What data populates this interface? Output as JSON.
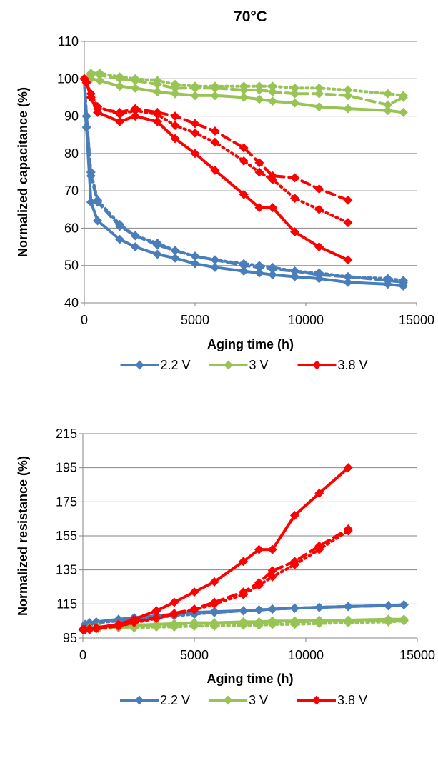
{
  "chart_data": [
    {
      "type": "line",
      "title": "70°C",
      "xlabel": "Aging time (h)",
      "ylabel": "Normalized capacitance (%)",
      "xlim": [
        0,
        15000
      ],
      "ylim": [
        40,
        110
      ],
      "xticks": [
        0,
        5000,
        10000,
        15000
      ],
      "yticks": [
        40,
        50,
        60,
        70,
        80,
        90,
        100,
        110
      ],
      "grid": "horizontal",
      "legend_position": "bottom",
      "legend": [
        "2.2 V",
        "3 V",
        "3.8 V"
      ],
      "series": [
        {
          "name": "2.2 V",
          "color": "#4a7ebb",
          "style": "solid",
          "show_in_legend": true,
          "x": [
            0,
            100,
            300,
            600,
            1600,
            2300,
            3300,
            4100,
            5000,
            5900,
            7200,
            7900,
            8500,
            9500,
            10600,
            11900,
            13700,
            14400
          ],
          "y": [
            100,
            87,
            67,
            62,
            57,
            55,
            53,
            52,
            50.5,
            49.5,
            48.5,
            48,
            47.5,
            47,
            46.5,
            45.5,
            45,
            44.5
          ]
        },
        {
          "name": "2.2 V",
          "color": "#4a7ebb",
          "style": "dash",
          "show_in_legend": false,
          "x": [
            0,
            100,
            300,
            600,
            1600,
            2300,
            3300,
            4100,
            5000,
            5900,
            7200,
            7900,
            8500,
            9500,
            10600,
            11900,
            13700,
            14400
          ],
          "y": [
            100,
            90,
            74,
            67,
            60.5,
            58,
            55.5,
            54,
            52.5,
            51.5,
            50,
            49.5,
            49,
            48.5,
            47.5,
            47,
            46,
            45.5
          ]
        },
        {
          "name": "2.2 V",
          "color": "#4a7ebb",
          "style": "dot",
          "show_in_legend": false,
          "x": [
            0,
            100,
            300,
            600,
            1600,
            2300,
            3300,
            4100,
            5000,
            5900,
            7200,
            7900,
            8500,
            9500,
            10600,
            11900,
            13700,
            14400
          ],
          "y": [
            100,
            90,
            75,
            67.5,
            61,
            58,
            56,
            54,
            52.5,
            51.5,
            50.5,
            50,
            49.5,
            48.5,
            48,
            47,
            46.5,
            46
          ]
        },
        {
          "name": "3 V",
          "color": "#98c455",
          "style": "solid",
          "show_in_legend": true,
          "x": [
            0,
            300,
            700,
            1600,
            2300,
            3300,
            4100,
            5000,
            5900,
            7200,
            7900,
            8500,
            9500,
            10600,
            11900,
            13700,
            14400
          ],
          "y": [
            100,
            100,
            99.5,
            98,
            97.5,
            96.5,
            96,
            95.5,
            95.5,
            95,
            94.5,
            94,
            93.5,
            92.5,
            92,
            91.5,
            91
          ]
        },
        {
          "name": "3 V",
          "color": "#98c455",
          "style": "dash",
          "show_in_legend": false,
          "x": [
            0,
            300,
            700,
            1600,
            2300,
            3300,
            4100,
            5000,
            5900,
            7200,
            7900,
            8500,
            9500,
            10600,
            11900,
            13700,
            14400
          ],
          "y": [
            100,
            101,
            101,
            100,
            99.5,
            98.5,
            97.5,
            97.5,
            97.5,
            97,
            97,
            96.5,
            96,
            96,
            95.5,
            93,
            95
          ]
        },
        {
          "name": "3 V",
          "color": "#98c455",
          "style": "dot",
          "show_in_legend": false,
          "x": [
            0,
            300,
            700,
            1600,
            2300,
            3300,
            4100,
            5000,
            5900,
            7200,
            7900,
            8500,
            9500,
            10600,
            11900,
            13700,
            14400
          ],
          "y": [
            100,
            101.5,
            101.5,
            100.5,
            100,
            99.5,
            98.5,
            98,
            98,
            98,
            98,
            98,
            97.5,
            97.5,
            97,
            96,
            95.5
          ]
        },
        {
          "name": "3.8 V",
          "color": "#ff0000",
          "style": "solid",
          "show_in_legend": true,
          "x": [
            0,
            100,
            300,
            600,
            1600,
            2300,
            3300,
            4100,
            5000,
            5900,
            7200,
            7900,
            8500,
            9500,
            10600,
            11900
          ],
          "y": [
            100,
            99,
            95,
            91,
            88.5,
            90,
            88.5,
            84,
            80,
            75.5,
            69,
            65.5,
            65.5,
            59,
            55,
            51.5
          ]
        },
        {
          "name": "3.8 V",
          "color": "#ff0000",
          "style": "dash",
          "show_in_legend": false,
          "x": [
            0,
            100,
            300,
            600,
            1600,
            2300,
            3300,
            4100,
            5000,
            5900,
            7200,
            7900,
            8500,
            9500,
            10600,
            11900
          ],
          "y": [
            100,
            99,
            95,
            92,
            91,
            92,
            91,
            90,
            88,
            86,
            81.5,
            77.5,
            74,
            73.5,
            70.5,
            67.5
          ]
        },
        {
          "name": "3.8 V",
          "color": "#ff0000",
          "style": "dot",
          "show_in_legend": false,
          "x": [
            0,
            100,
            300,
            600,
            1600,
            2300,
            3300,
            4100,
            5000,
            5900,
            7200,
            7900,
            8500,
            9500,
            10600,
            11900
          ],
          "y": [
            100,
            99,
            96,
            92.5,
            90.5,
            91.5,
            90.5,
            87.5,
            85.5,
            83,
            78,
            75,
            73,
            68,
            65,
            61.5
          ]
        }
      ]
    },
    {
      "type": "line",
      "title": "",
      "xlabel": "Aging time (h)",
      "ylabel": "Normalized resistance (%)",
      "xlim": [
        0,
        15000
      ],
      "ylim": [
        95,
        215
      ],
      "xticks": [
        0,
        5000,
        10000,
        15000
      ],
      "yticks": [
        95,
        115,
        135,
        155,
        175,
        195,
        215
      ],
      "grid": "horizontal",
      "legend_position": "bottom",
      "legend": [
        "2.2 V",
        "3 V",
        "3.8 V"
      ],
      "series": [
        {
          "name": "2.2 V",
          "color": "#4a7ebb",
          "style": "solid",
          "show_in_legend": true,
          "x": [
            0,
            100,
            300,
            600,
            1600,
            2300,
            3300,
            4100,
            5000,
            5900,
            7200,
            7900,
            8500,
            9500,
            10600,
            11900,
            13700,
            14400
          ],
          "y": [
            100,
            103,
            104,
            104.5,
            106,
            107,
            108,
            109,
            110,
            110.5,
            111,
            111.5,
            112,
            112.5,
            113,
            113.5,
            114,
            114.5
          ]
        },
        {
          "name": "2.2 V",
          "color": "#4a7ebb",
          "style": "dash",
          "show_in_legend": false,
          "x": [
            0,
            100,
            300,
            600,
            1600,
            2300,
            3300,
            4100,
            5000,
            5900,
            7200,
            7900,
            8500,
            9500,
            10600,
            11900,
            13700,
            14400
          ],
          "y": [
            100,
            102.5,
            103.5,
            104,
            105.5,
            106.5,
            107.5,
            108.5,
            109.5,
            110,
            111,
            111.5,
            112,
            112.5,
            113,
            113.5,
            114,
            114.5
          ]
        },
        {
          "name": "2.2 V",
          "color": "#4a7ebb",
          "style": "dot",
          "show_in_legend": false,
          "x": [
            0,
            100,
            300,
            600,
            1600,
            2300,
            3300,
            4100,
            5000,
            5900,
            7200,
            7900,
            8500,
            9500,
            10600,
            11900,
            13700,
            14400
          ],
          "y": [
            100,
            102,
            103,
            104,
            105,
            106,
            107,
            108,
            109,
            110,
            111,
            111.5,
            112,
            112.5,
            113,
            113.5,
            114,
            114.5
          ]
        },
        {
          "name": "3 V",
          "color": "#98c455",
          "style": "solid",
          "show_in_legend": true,
          "x": [
            0,
            300,
            700,
            1600,
            2300,
            3300,
            4100,
            5000,
            5900,
            7200,
            7900,
            8500,
            9500,
            10600,
            11900,
            13700,
            14400
          ],
          "y": [
            100,
            101,
            101.5,
            102,
            102.5,
            103,
            103.5,
            104,
            104,
            104.5,
            104.5,
            105,
            105,
            105.5,
            105.5,
            106,
            106
          ]
        },
        {
          "name": "3 V",
          "color": "#98c455",
          "style": "dash",
          "show_in_legend": false,
          "x": [
            0,
            300,
            700,
            1600,
            2300,
            3300,
            4100,
            5000,
            5900,
            7200,
            7900,
            8500,
            9500,
            10600,
            11900,
            13700,
            14400
          ],
          "y": [
            100,
            100.5,
            101,
            101.5,
            102,
            102.5,
            103,
            103.5,
            103.5,
            104,
            104,
            104.5,
            104.5,
            105,
            105,
            105.5,
            105.5
          ]
        },
        {
          "name": "3 V",
          "color": "#98c455",
          "style": "dot",
          "show_in_legend": false,
          "x": [
            0,
            300,
            700,
            1600,
            2300,
            3300,
            4100,
            5000,
            5900,
            7200,
            7900,
            8500,
            9500,
            10600,
            11900,
            13700,
            14400
          ],
          "y": [
            100,
            100,
            100.5,
            101,
            101,
            101.5,
            101.5,
            102,
            102,
            102.5,
            102.5,
            103,
            103,
            103.5,
            104,
            104.5,
            105
          ]
        },
        {
          "name": "3.8 V",
          "color": "#ff0000",
          "style": "solid",
          "show_in_legend": true,
          "x": [
            0,
            100,
            300,
            600,
            1600,
            2300,
            3300,
            4100,
            5000,
            5900,
            7200,
            7900,
            8500,
            9500,
            10600,
            11900
          ],
          "y": [
            100,
            100,
            100.5,
            101,
            103,
            106,
            111,
            116,
            122,
            128,
            140,
            147,
            147,
            167,
            180,
            195
          ]
        },
        {
          "name": "3.8 V",
          "color": "#ff0000",
          "style": "dash",
          "show_in_legend": false,
          "x": [
            0,
            100,
            300,
            600,
            1600,
            2300,
            3300,
            4100,
            5000,
            5900,
            7200,
            7900,
            8500,
            9500,
            10600,
            11900
          ],
          "y": [
            100,
            100,
            100,
            100.5,
            102,
            104.5,
            107,
            109.5,
            112,
            116,
            122,
            127.5,
            134.5,
            140,
            149,
            159
          ]
        },
        {
          "name": "3.8 V",
          "color": "#ff0000",
          "style": "dot",
          "show_in_legend": false,
          "x": [
            0,
            100,
            300,
            600,
            1600,
            2300,
            3300,
            4100,
            5000,
            5900,
            7200,
            7900,
            8500,
            9500,
            10600,
            11900
          ],
          "y": [
            100,
            100,
            100,
            100.5,
            102,
            104,
            106.5,
            109,
            111.5,
            115,
            120.5,
            126,
            131,
            138,
            147,
            158
          ]
        }
      ]
    }
  ]
}
